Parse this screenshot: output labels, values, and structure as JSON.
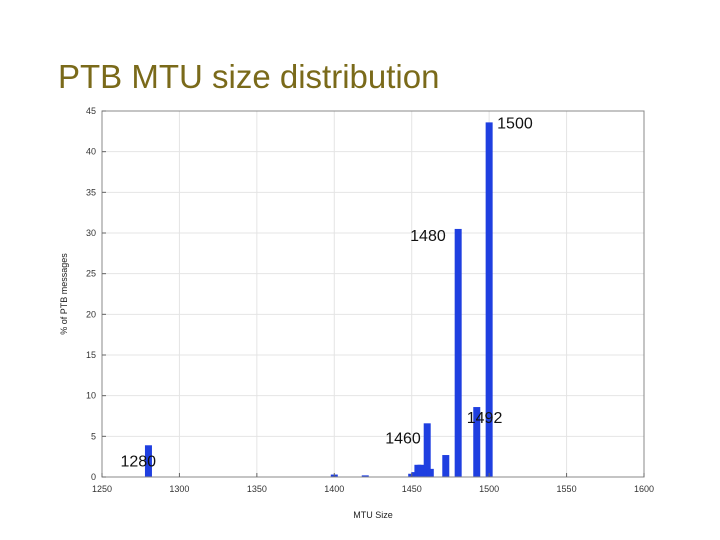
{
  "slide": {
    "title": "PTB MTU size distribution"
  },
  "chart_data": {
    "type": "bar",
    "xlabel": "MTU Size",
    "ylabel": "% of PTB messages",
    "xlim": [
      1250,
      1600
    ],
    "ylim": [
      0,
      45
    ],
    "xticks": [
      1250,
      1300,
      1350,
      1400,
      1450,
      1500,
      1550,
      1600
    ],
    "yticks": [
      0,
      5,
      10,
      15,
      20,
      25,
      30,
      35,
      40,
      45
    ],
    "grid": true,
    "bar_color": "#1f3fe0",
    "points": [
      {
        "x": 1280,
        "y": 3.9
      },
      {
        "x": 1400,
        "y": 0.3
      },
      {
        "x": 1420,
        "y": 0.2
      },
      {
        "x": 1450,
        "y": 0.4
      },
      {
        "x": 1452,
        "y": 0.6
      },
      {
        "x": 1454,
        "y": 1.5
      },
      {
        "x": 1456,
        "y": 1.5
      },
      {
        "x": 1460,
        "y": 6.6
      },
      {
        "x": 1462,
        "y": 1.0
      },
      {
        "x": 1472,
        "y": 2.7
      },
      {
        "x": 1480,
        "y": 30.5
      },
      {
        "x": 1492,
        "y": 8.6
      },
      {
        "x": 1500,
        "y": 43.6
      }
    ],
    "annotations": [
      {
        "text": "1500",
        "x": 1500,
        "y": 43.6
      },
      {
        "text": "1480",
        "x": 1480,
        "y": 30.5
      },
      {
        "text": "1492",
        "x": 1492,
        "y": 8.6
      },
      {
        "text": "1460",
        "x": 1460,
        "y": 6.6
      },
      {
        "text": "1280",
        "x": 1280,
        "y": 3.9
      }
    ]
  }
}
